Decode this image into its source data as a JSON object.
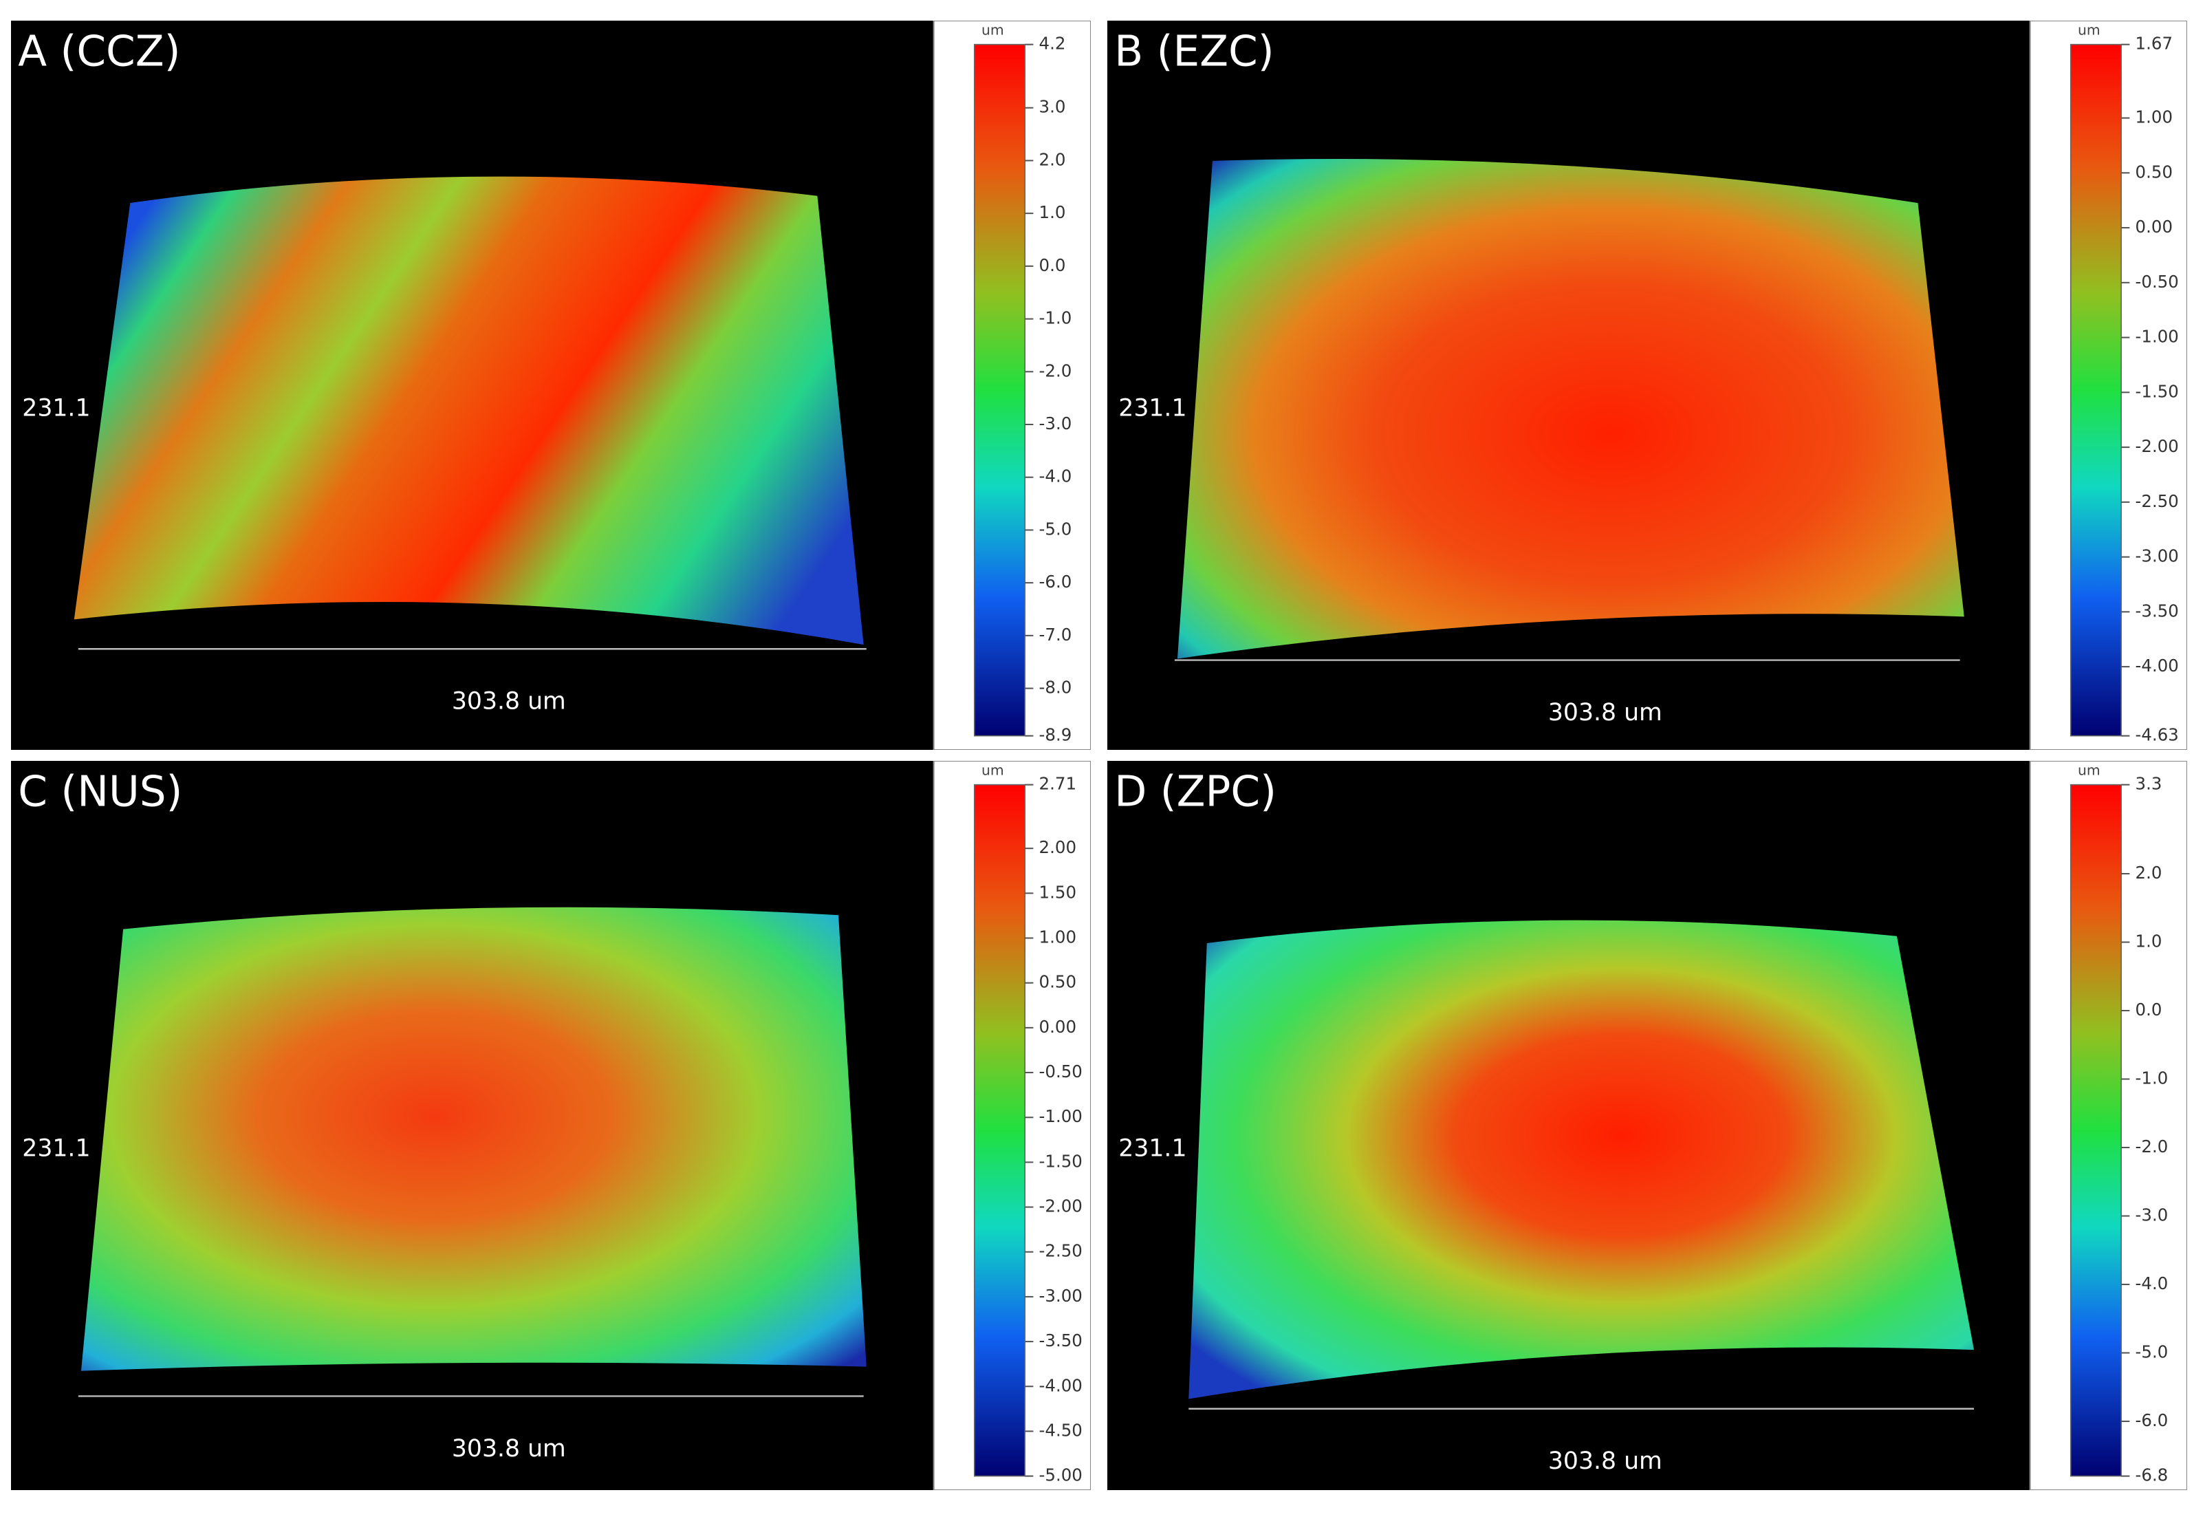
{
  "panels": [
    {
      "label": "A (CCZ)",
      "y_label": "231.1",
      "x_label": "303.8 um",
      "unit": "um",
      "colorbar": [
        "4.2",
        "3.0",
        "2.0",
        "1.0",
        "0.0",
        "-1.0",
        "-2.0",
        "-3.0",
        "-4.0",
        "-5.0",
        "-6.0",
        "-7.0",
        "-8.0",
        "-8.9"
      ]
    },
    {
      "label": "B (EZC)",
      "y_label": "231.1",
      "x_label": "303.8 um",
      "unit": "um",
      "colorbar": [
        "1.67",
        "1.00",
        "0.50",
        "0.00",
        "-0.50",
        "-1.00",
        "-1.50",
        "-2.00",
        "-2.50",
        "-3.00",
        "-3.50",
        "-4.00",
        "-4.63"
      ]
    },
    {
      "label": "C (NUS)",
      "y_label": "231.1",
      "x_label": "303.8 um",
      "unit": "um",
      "colorbar": [
        "2.71",
        "2.00",
        "1.50",
        "1.00",
        "0.50",
        "0.00",
        "-0.50",
        "-1.00",
        "-1.50",
        "-2.00",
        "-2.50",
        "-3.00",
        "-3.50",
        "-4.00",
        "-4.50",
        "-5.00"
      ]
    },
    {
      "label": "D (ZPC)",
      "y_label": "231.1",
      "x_label": "303.8 um",
      "unit": "um",
      "colorbar": [
        "3.3",
        "2.0",
        "1.0",
        "0.0",
        "-1.0",
        "-2.0",
        "-3.0",
        "-4.0",
        "-5.0",
        "-6.0",
        "-6.8"
      ]
    }
  ]
}
